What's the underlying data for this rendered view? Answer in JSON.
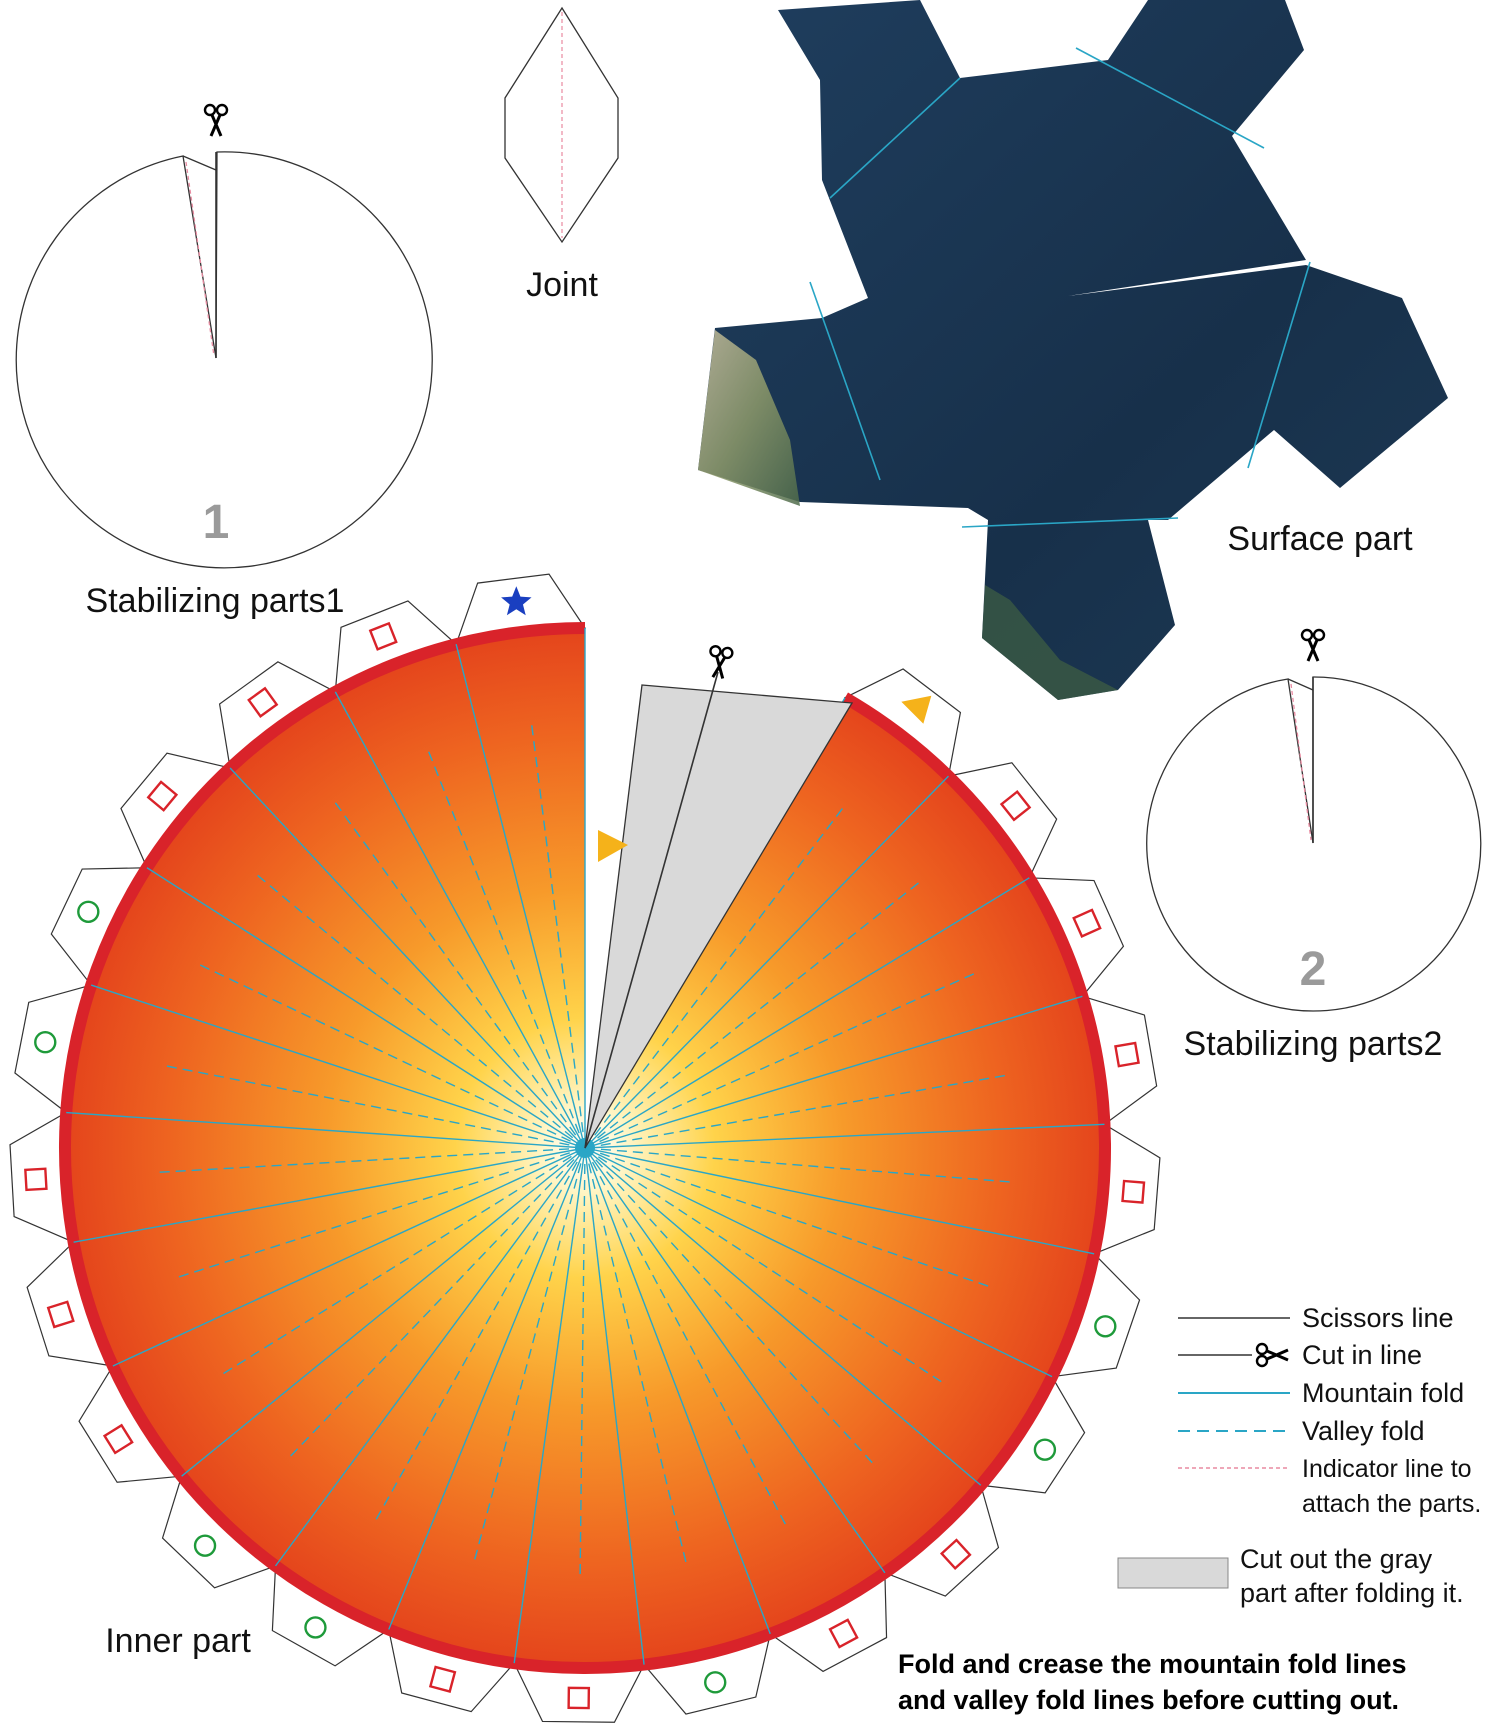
{
  "parts": {
    "stabilizing1": {
      "label": "Stabilizing parts1",
      "number": "1"
    },
    "stabilizing2": {
      "label": "Stabilizing parts2",
      "number": "2"
    },
    "joint": {
      "label": "Joint"
    },
    "surface": {
      "label": "Surface part"
    },
    "inner": {
      "label": "Inner part"
    }
  },
  "legend": {
    "scissors_line": "Scissors line",
    "cut_in_line": "Cut in line",
    "mountain_fold": "Mountain fold",
    "valley_fold": "Valley fold",
    "indicator_line_1": "Indicator line to",
    "indicator_line_2": "attach the parts.",
    "gray_note_1": "Cut out the gray",
    "gray_note_2": "part after folding it."
  },
  "instructions": {
    "line1": "Fold and crease the mountain fold lines",
    "line2": "and valley fold lines before cutting out."
  },
  "colors": {
    "mountain_fold": "#2aa6c6",
    "valley_fold": "#2aa6c6",
    "indicator": "#e88aa0",
    "rim": "#d9232a",
    "square_mark": "#d9232a",
    "circle_mark": "#1e9a3a",
    "star_mark": "#1a3fc0",
    "triangle_mark": "#f5b21a",
    "gray_part": "#d9d9d9",
    "ocean": "#1b3550"
  },
  "tab_marks": [
    "star",
    "square",
    "square",
    "square",
    "circle",
    "circle",
    "square",
    "square",
    "square",
    "circle",
    "circle",
    "square",
    "square",
    "circle",
    "square",
    "square",
    "circle",
    "circle",
    "square",
    "square",
    "square",
    "square",
    "triangle"
  ],
  "icons": {
    "scissors": "scissors-icon"
  }
}
